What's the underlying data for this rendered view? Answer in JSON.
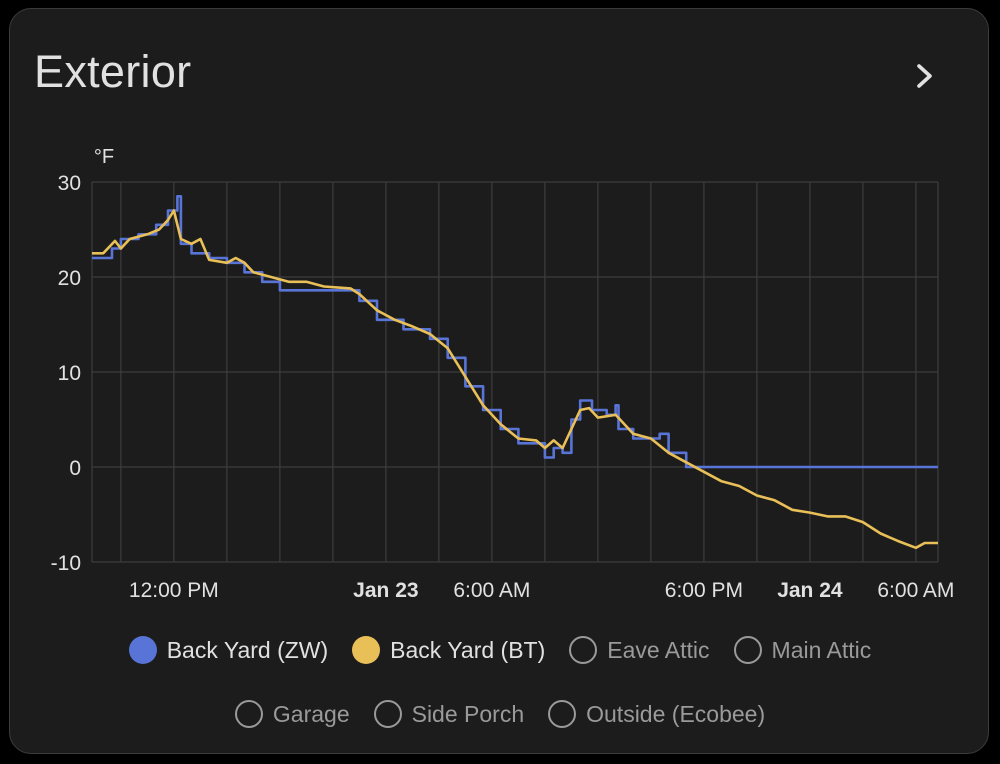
{
  "card": {
    "title": "Exterior",
    "more_icon": "chevron-right-icon"
  },
  "colors": {
    "background": "#1c1c1c",
    "grid": "#3d3d3d",
    "text": "#e1e1e1"
  },
  "chart_data": {
    "type": "line",
    "unit": "°F",
    "ylim": [
      -10,
      30
    ],
    "yticks": [
      30,
      20,
      10,
      0,
      -10
    ],
    "xlim": [
      "2023-01-22T07:22",
      "2023-01-24T07:15"
    ],
    "xticks": [
      {
        "t": "2023-01-22T12:00",
        "label": "12:00 PM",
        "bold": false
      },
      {
        "t": "2023-01-23T00:00",
        "label": "Jan 23",
        "bold": true
      },
      {
        "t": "2023-01-23T06:00",
        "label": "6:00 AM",
        "bold": false
      },
      {
        "t": "2023-01-23T18:00",
        "label": "6:00 PM",
        "bold": false
      },
      {
        "t": "2023-01-24T00:00",
        "label": "Jan 24",
        "bold": true
      },
      {
        "t": "2023-01-24T06:00",
        "label": "6:00 AM",
        "bold": false
      }
    ],
    "grid": true,
    "legend_position": "bottom",
    "series": [
      {
        "name": "Back Yard (ZW)",
        "color": "#5874d6",
        "enabled": true,
        "step": true,
        "points": [
          [
            "2023-01-22T07:22",
            22.0
          ],
          [
            "2023-01-22T08:30",
            23.0
          ],
          [
            "2023-01-22T09:00",
            24.0
          ],
          [
            "2023-01-22T10:00",
            24.5
          ],
          [
            "2023-01-22T11:00",
            25.5
          ],
          [
            "2023-01-22T11:40",
            27.0
          ],
          [
            "2023-01-22T12:12",
            28.5
          ],
          [
            "2023-01-22T12:24",
            23.5
          ],
          [
            "2023-01-22T13:00",
            22.5
          ],
          [
            "2023-01-22T14:00",
            22.0
          ],
          [
            "2023-01-22T15:00",
            21.5
          ],
          [
            "2023-01-22T16:00",
            20.5
          ],
          [
            "2023-01-22T17:00",
            19.5
          ],
          [
            "2023-01-22T18:00",
            18.6
          ],
          [
            "2023-01-22T22:00",
            18.6
          ],
          [
            "2023-01-22T22:30",
            17.5
          ],
          [
            "2023-01-22T23:30",
            15.5
          ],
          [
            "2023-01-23T01:00",
            14.5
          ],
          [
            "2023-01-23T02:30",
            13.5
          ],
          [
            "2023-01-23T03:30",
            11.5
          ],
          [
            "2023-01-23T04:30",
            8.5
          ],
          [
            "2023-01-23T05:30",
            6.0
          ],
          [
            "2023-01-23T06:30",
            4.0
          ],
          [
            "2023-01-23T07:30",
            2.5
          ],
          [
            "2023-01-23T09:00",
            1.0
          ],
          [
            "2023-01-23T09:30",
            2.0
          ],
          [
            "2023-01-23T10:00",
            1.5
          ],
          [
            "2023-01-23T10:30",
            5.0
          ],
          [
            "2023-01-23T11:00",
            7.0
          ],
          [
            "2023-01-23T11:40",
            6.0
          ],
          [
            "2023-01-23T12:30",
            5.5
          ],
          [
            "2023-01-23T13:00",
            6.5
          ],
          [
            "2023-01-23T13:10",
            4.0
          ],
          [
            "2023-01-23T14:00",
            3.0
          ],
          [
            "2023-01-23T15:30",
            3.5
          ],
          [
            "2023-01-23T16:00",
            1.5
          ],
          [
            "2023-01-23T17:00",
            0.0
          ],
          [
            "2023-01-24T07:15",
            0.0
          ]
        ]
      },
      {
        "name": "Back Yard (BT)",
        "color": "#e9bf58",
        "enabled": true,
        "step": false,
        "points": [
          [
            "2023-01-22T07:22",
            22.5
          ],
          [
            "2023-01-22T08:00",
            22.5
          ],
          [
            "2023-01-22T08:40",
            23.8
          ],
          [
            "2023-01-22T09:00",
            23.0
          ],
          [
            "2023-01-22T09:30",
            24.0
          ],
          [
            "2023-01-22T10:30",
            24.5
          ],
          [
            "2023-01-22T11:10",
            25.0
          ],
          [
            "2023-01-22T11:40",
            26.0
          ],
          [
            "2023-01-22T12:00",
            27.0
          ],
          [
            "2023-01-22T12:12",
            25.5
          ],
          [
            "2023-01-22T12:24",
            24.0
          ],
          [
            "2023-01-22T13:00",
            23.5
          ],
          [
            "2023-01-22T13:30",
            24.0
          ],
          [
            "2023-01-22T14:00",
            21.8
          ],
          [
            "2023-01-22T15:00",
            21.5
          ],
          [
            "2023-01-22T15:30",
            22.0
          ],
          [
            "2023-01-22T16:00",
            21.5
          ],
          [
            "2023-01-22T16:30",
            20.5
          ],
          [
            "2023-01-22T17:30",
            20.0
          ],
          [
            "2023-01-22T18:30",
            19.5
          ],
          [
            "2023-01-22T19:30",
            19.5
          ],
          [
            "2023-01-22T20:30",
            19.0
          ],
          [
            "2023-01-22T22:00",
            18.8
          ],
          [
            "2023-01-22T22:30",
            18.2
          ],
          [
            "2023-01-22T23:30",
            16.5
          ],
          [
            "2023-01-23T00:30",
            15.5
          ],
          [
            "2023-01-23T01:30",
            14.8
          ],
          [
            "2023-01-23T02:30",
            14.0
          ],
          [
            "2023-01-23T03:30",
            12.5
          ],
          [
            "2023-01-23T04:30",
            9.5
          ],
          [
            "2023-01-23T05:30",
            6.5
          ],
          [
            "2023-01-23T06:30",
            4.5
          ],
          [
            "2023-01-23T07:30",
            3.0
          ],
          [
            "2023-01-23T08:30",
            2.8
          ],
          [
            "2023-01-23T09:00",
            2.0
          ],
          [
            "2023-01-23T09:30",
            2.8
          ],
          [
            "2023-01-23T10:00",
            2.0
          ],
          [
            "2023-01-23T10:30",
            4.0
          ],
          [
            "2023-01-23T11:00",
            6.0
          ],
          [
            "2023-01-23T11:30",
            6.2
          ],
          [
            "2023-01-23T12:00",
            5.2
          ],
          [
            "2023-01-23T13:00",
            5.5
          ],
          [
            "2023-01-23T14:00",
            3.5
          ],
          [
            "2023-01-23T15:00",
            3.0
          ],
          [
            "2023-01-23T16:00",
            1.5
          ],
          [
            "2023-01-23T17:00",
            0.5
          ],
          [
            "2023-01-23T18:00",
            -0.5
          ],
          [
            "2023-01-23T19:00",
            -1.5
          ],
          [
            "2023-01-23T20:00",
            -2.0
          ],
          [
            "2023-01-23T21:00",
            -3.0
          ],
          [
            "2023-01-23T22:00",
            -3.5
          ],
          [
            "2023-01-23T23:00",
            -4.5
          ],
          [
            "2023-01-24T00:00",
            -4.8
          ],
          [
            "2023-01-24T01:00",
            -5.2
          ],
          [
            "2023-01-24T02:00",
            -5.2
          ],
          [
            "2023-01-24T03:00",
            -5.8
          ],
          [
            "2023-01-24T04:00",
            -7.0
          ],
          [
            "2023-01-24T05:00",
            -7.8
          ],
          [
            "2023-01-24T06:00",
            -8.5
          ],
          [
            "2023-01-24T06:30",
            -8.0
          ],
          [
            "2023-01-24T07:15",
            -8.0
          ]
        ]
      },
      {
        "name": "Eave Attic",
        "enabled": false
      },
      {
        "name": "Main Attic",
        "enabled": false
      },
      {
        "name": "Garage",
        "enabled": false
      },
      {
        "name": "Side Porch",
        "enabled": false
      },
      {
        "name": "Outside (Ecobee)",
        "enabled": false
      }
    ]
  }
}
